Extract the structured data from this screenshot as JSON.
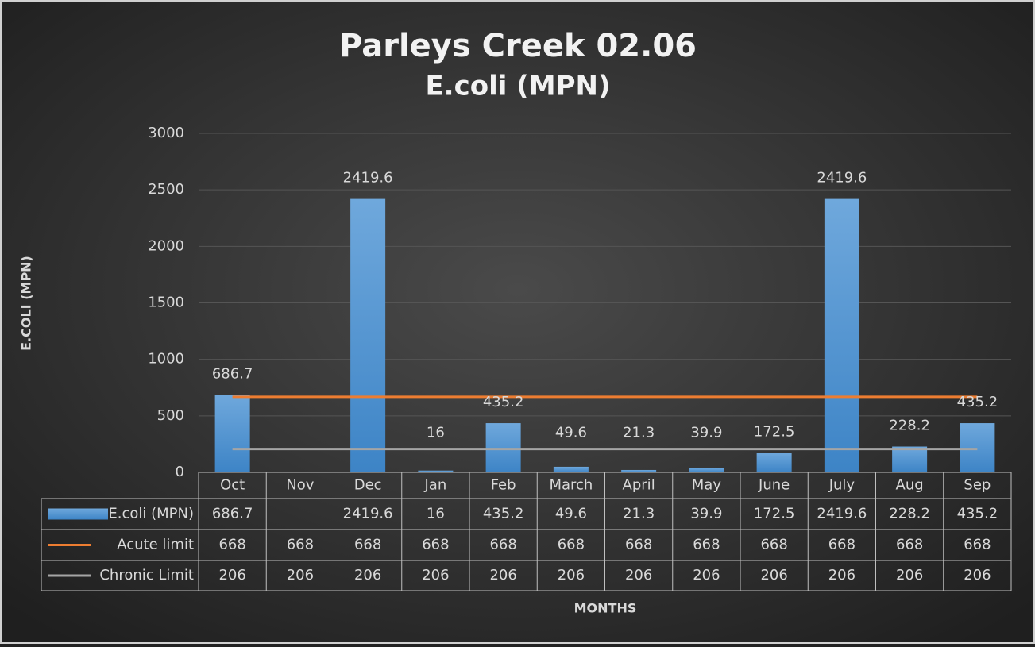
{
  "chart_data": {
    "type": "bar",
    "title": "Parleys Creek 02.06",
    "subtitle": "E.coli (MPN)",
    "x_label": "MONTHS",
    "y_label": "E.COLI (MPN)",
    "categories": [
      "Oct",
      "Nov",
      "Dec",
      "Jan",
      "Feb",
      "March",
      "April",
      "May",
      "June",
      "July",
      "Aug",
      "Sep"
    ],
    "series": [
      {
        "name": "E.coli (MPN)",
        "type": "bar",
        "color": "#5b9bd5",
        "values": [
          686.7,
          null,
          2419.6,
          16,
          435.2,
          49.6,
          21.3,
          39.9,
          172.5,
          2419.6,
          228.2,
          435.2
        ]
      },
      {
        "name": "Acute limit",
        "type": "line",
        "color": "#ed7d31",
        "values": [
          668,
          668,
          668,
          668,
          668,
          668,
          668,
          668,
          668,
          668,
          668,
          668
        ]
      },
      {
        "name": "Chronic Limit",
        "type": "line",
        "color": "#a5a5a5",
        "values": [
          206,
          206,
          206,
          206,
          206,
          206,
          206,
          206,
          206,
          206,
          206,
          206
        ]
      }
    ],
    "ylim": [
      0,
      3000
    ],
    "yticks": [
      0,
      500,
      1000,
      1500,
      2000,
      2500,
      3000
    ],
    "grid": true,
    "data_table": true,
    "data_labels": true
  }
}
